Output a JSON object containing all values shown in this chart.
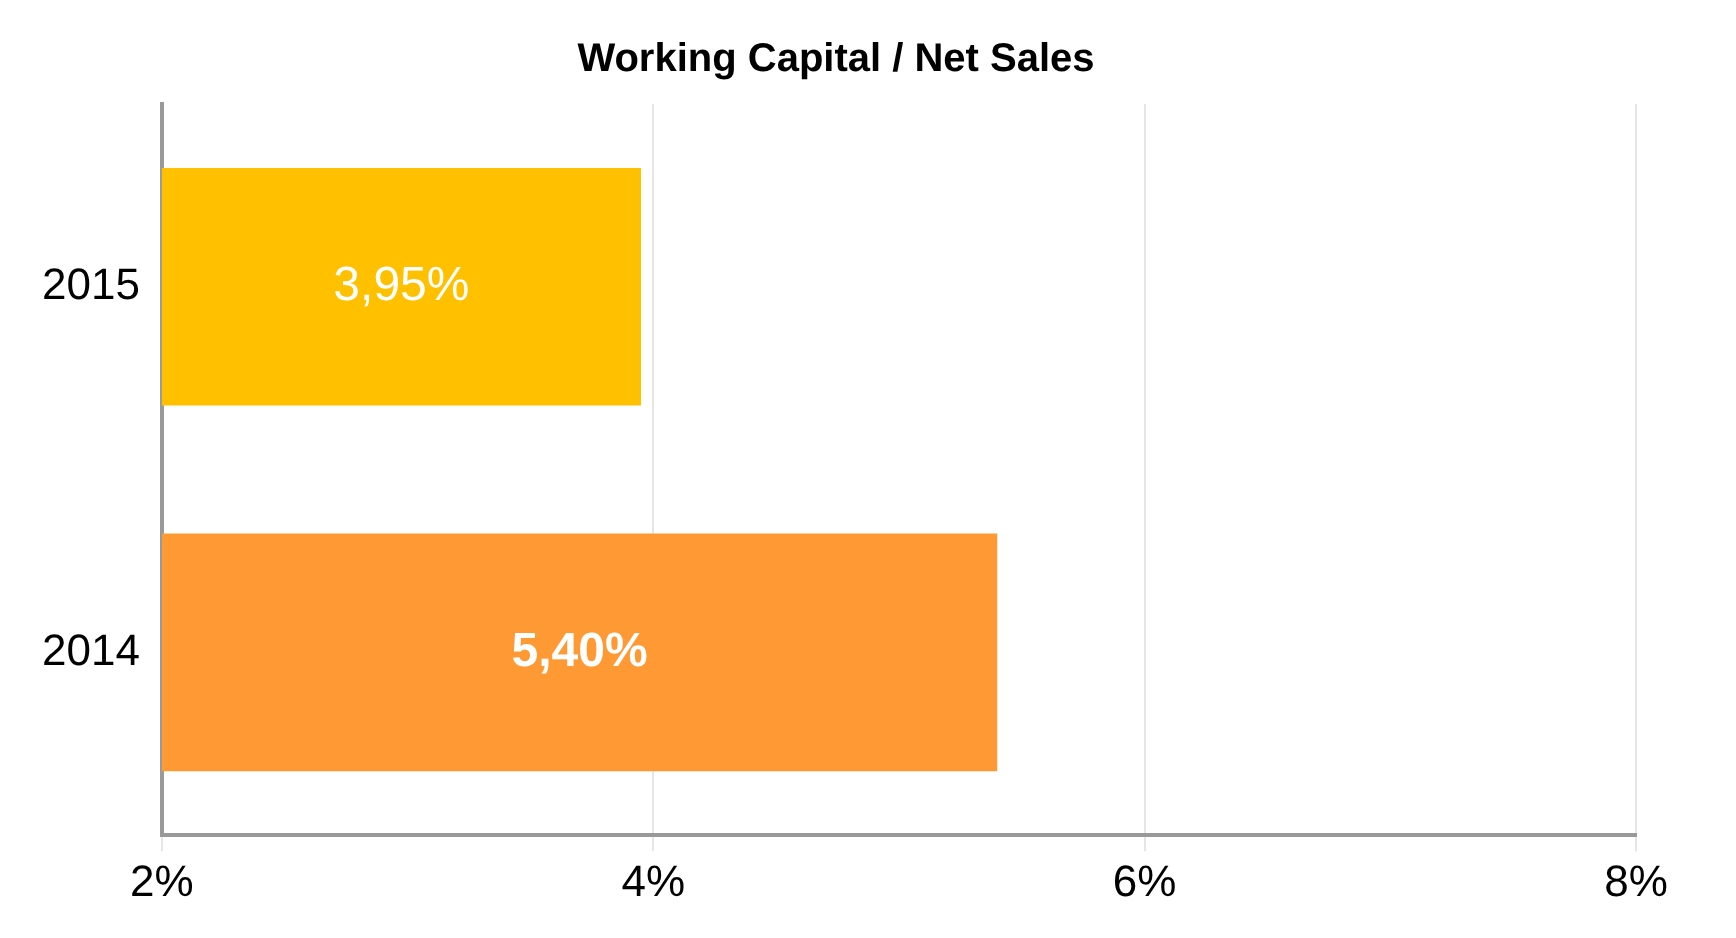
{
  "chart_data": {
    "type": "bar",
    "orientation": "horizontal",
    "title": "Working Capital / Net Sales",
    "categories": [
      "2015",
      "2014"
    ],
    "values": [
      3.95,
      5.4
    ],
    "colors": [
      "#ffc000",
      "#ff9933"
    ],
    "value_labels": [
      "3,95%",
      "5,40%"
    ],
    "xlim": [
      2,
      8
    ],
    "xticks": [
      {
        "value": 2,
        "label": "2%"
      },
      {
        "value": 4,
        "label": "4%"
      },
      {
        "value": 6,
        "label": "6%"
      },
      {
        "value": 8,
        "label": "8%"
      }
    ],
    "grid": "x",
    "legend": false
  }
}
